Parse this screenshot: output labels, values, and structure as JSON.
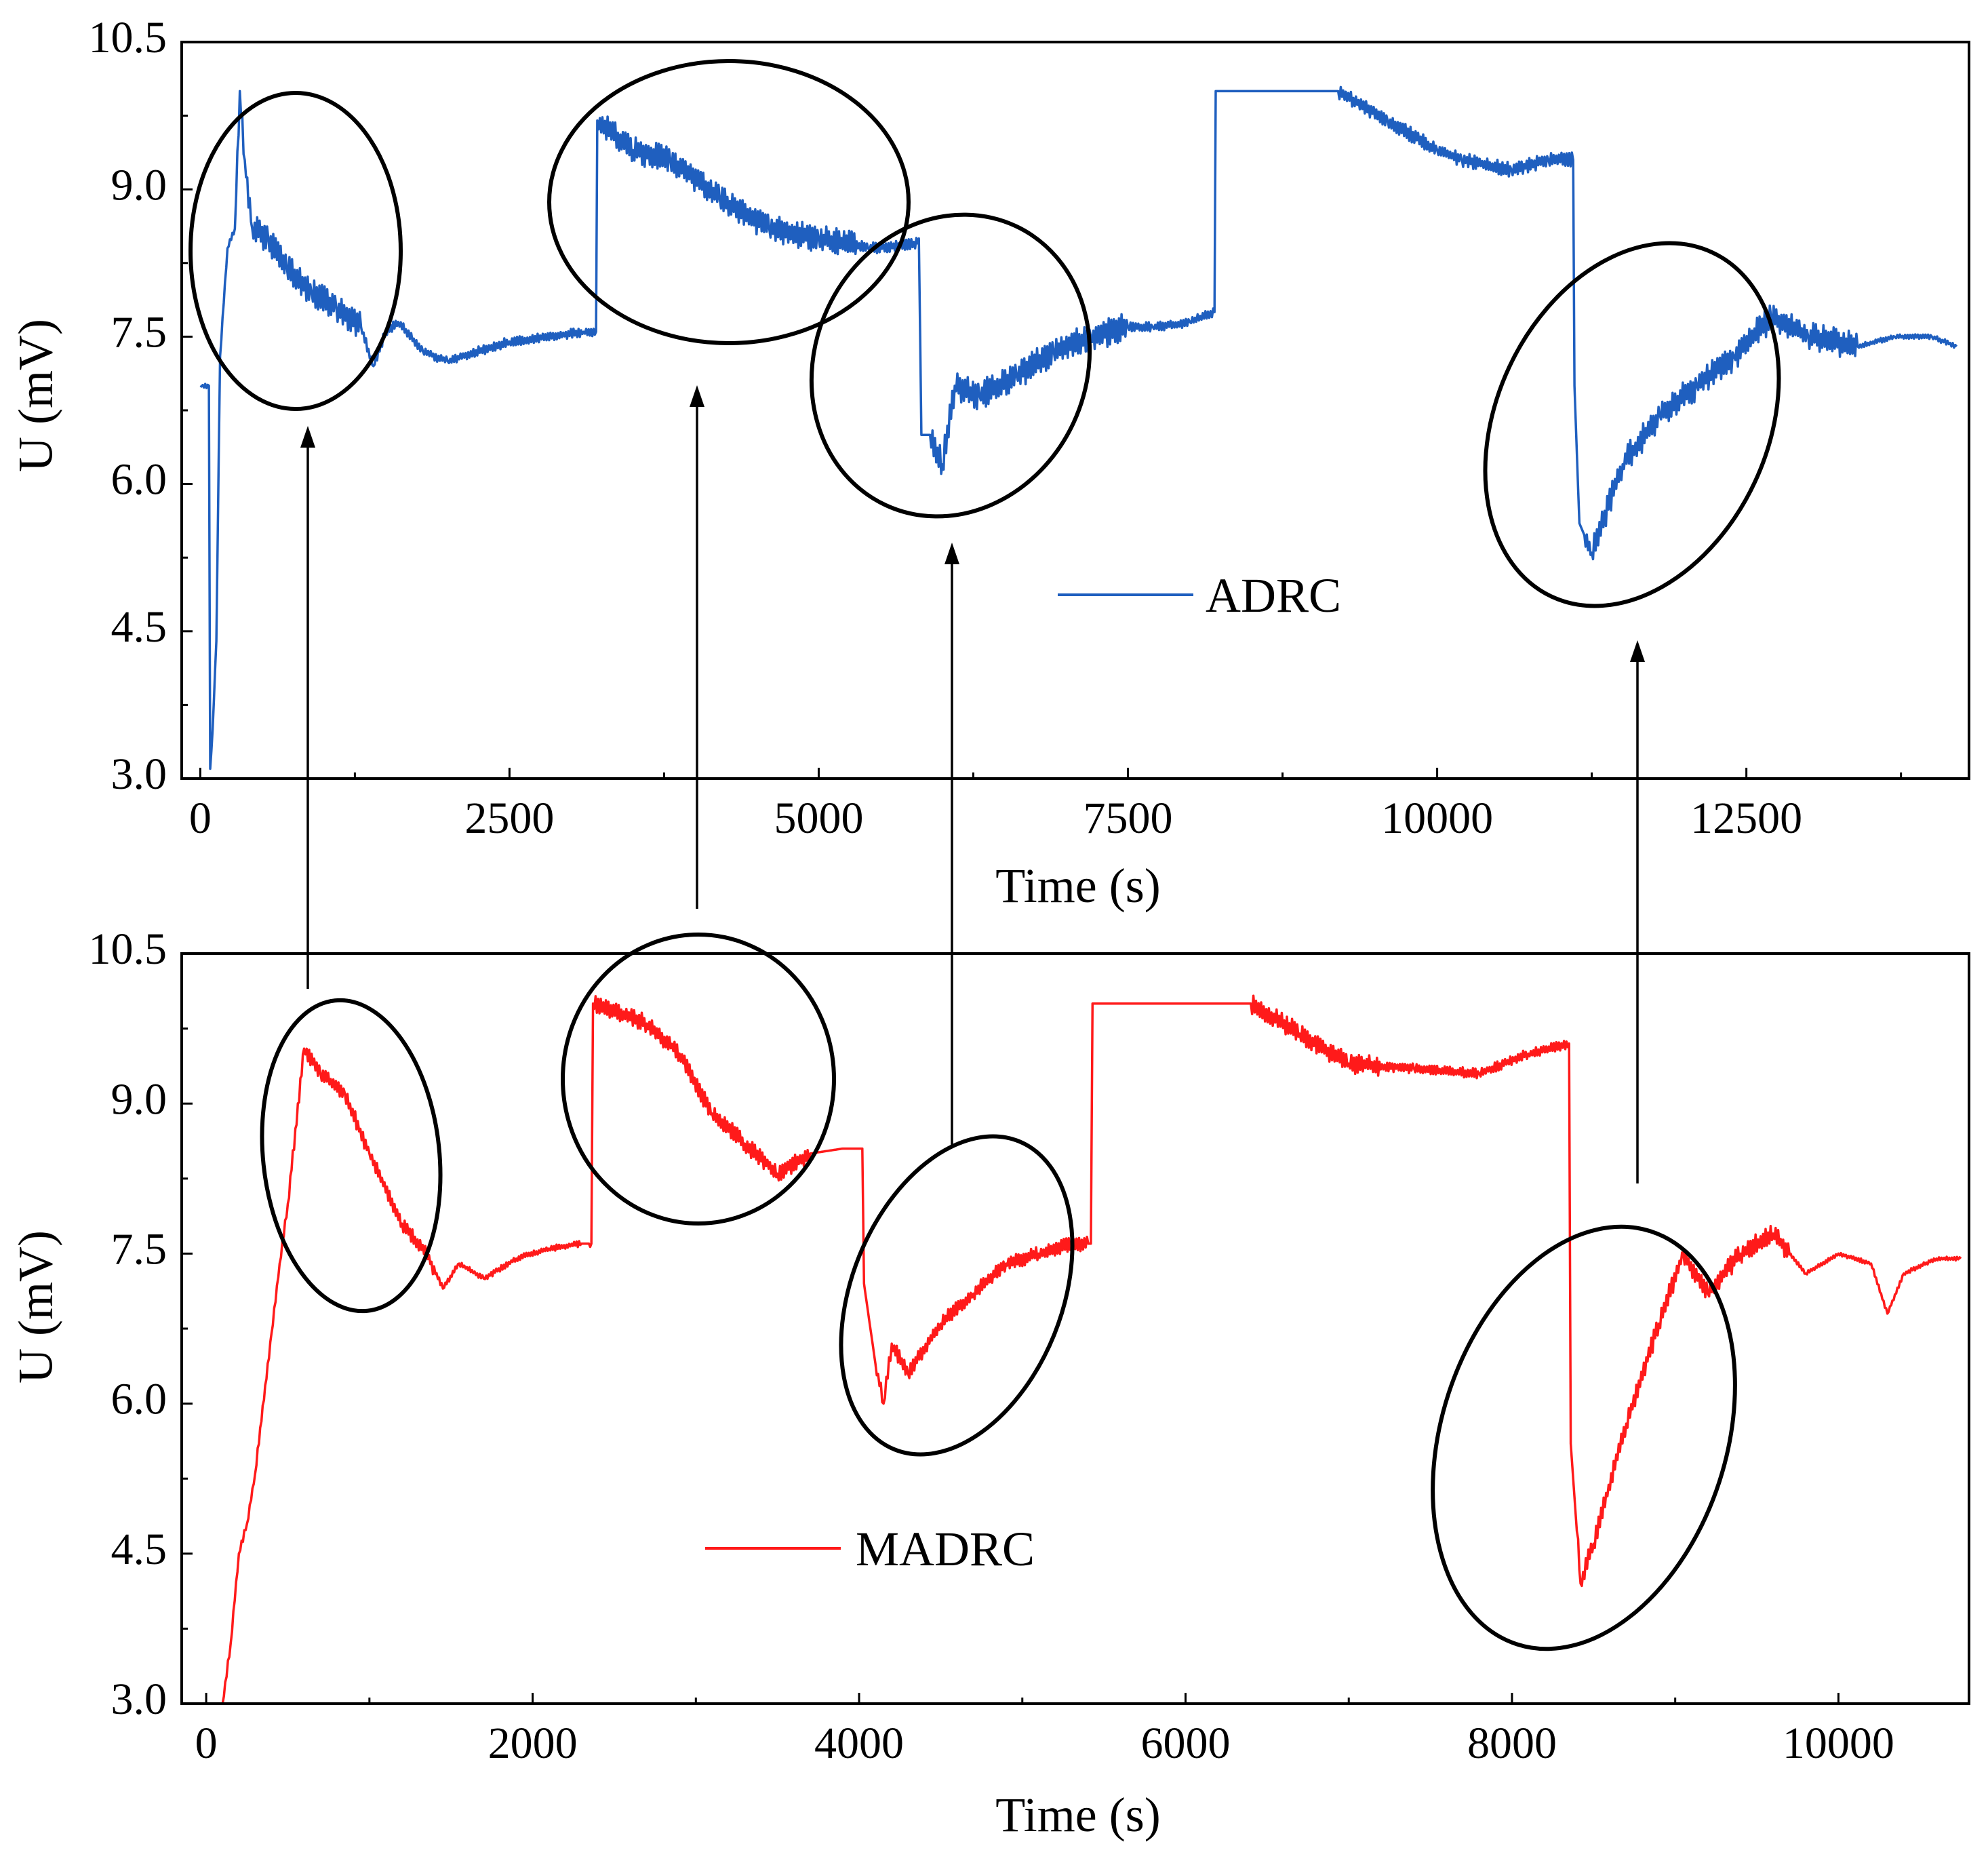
{
  "colors": {
    "adrc": "#1f5fbf",
    "madrc": "#ff1a1a",
    "axis": "#000000"
  },
  "chart_data": [
    {
      "type": "line",
      "id": "top",
      "xlabel": "Time (s)",
      "ylabel": "U (mV)",
      "xlim": [
        -150,
        14300
      ],
      "ylim": [
        3.0,
        10.5
      ],
      "xticks": [
        0,
        2500,
        5000,
        7500,
        10000,
        12500
      ],
      "xtick_labels": [
        "0",
        "2500",
        "5000",
        "7500",
        "10000",
        "12500"
      ],
      "yticks": [
        3.0,
        4.5,
        6.0,
        7.5,
        9.0,
        10.5
      ],
      "ytick_labels": [
        "3.0",
        "4.5",
        "6.0",
        "7.5",
        "9.0",
        "10.5"
      ],
      "legend": {
        "label": "ADRC",
        "position": "center-right"
      },
      "series": [
        {
          "name": "ADRC",
          "noise": [
            [
              0,
              300,
              0.05
            ],
            [
              300,
              1300,
              0.3
            ],
            [
              1300,
              3200,
              0.1
            ],
            [
              3200,
              5300,
              0.28
            ],
            [
              5300,
              5800,
              0.12
            ],
            [
              5900,
              7500,
              0.3
            ],
            [
              7500,
              8200,
              0.1
            ],
            [
              9200,
              11100,
              0.15
            ],
            [
              11200,
              13400,
              0.3
            ],
            [
              13400,
              14200,
              0.05
            ]
          ],
          "points": [
            [
              0,
              7.0
            ],
            [
              70,
              7.0
            ],
            [
              80,
              3.1
            ],
            [
              100,
              3.5
            ],
            [
              130,
              4.4
            ],
            [
              160,
              7.3
            ],
            [
              220,
              8.4
            ],
            [
              280,
              8.6
            ],
            [
              320,
              10.0
            ],
            [
              360,
              9.3
            ],
            [
              420,
              8.6
            ],
            [
              550,
              8.5
            ],
            [
              700,
              8.2
            ],
            [
              900,
              7.95
            ],
            [
              1100,
              7.8
            ],
            [
              1300,
              7.6
            ],
            [
              1400,
              7.2
            ],
            [
              1500,
              7.55
            ],
            [
              1600,
              7.65
            ],
            [
              1800,
              7.35
            ],
            [
              2000,
              7.25
            ],
            [
              2500,
              7.45
            ],
            [
              3100,
              7.55
            ],
            [
              3200,
              7.55
            ],
            [
              3210,
              9.7
            ],
            [
              3500,
              9.4
            ],
            [
              3800,
              9.3
            ],
            [
              4200,
              8.9
            ],
            [
              4600,
              8.6
            ],
            [
              5000,
              8.5
            ],
            [
              5400,
              8.4
            ],
            [
              5800,
              8.45
            ],
            [
              5810,
              8.5
            ],
            [
              5830,
              6.5
            ],
            [
              5900,
              6.5
            ],
            [
              6000,
              6.2
            ],
            [
              6100,
              7.0
            ],
            [
              6300,
              6.9
            ],
            [
              6600,
              7.1
            ],
            [
              6900,
              7.35
            ],
            [
              7200,
              7.5
            ],
            [
              7500,
              7.6
            ],
            [
              7700,
              7.6
            ],
            [
              8000,
              7.65
            ],
            [
              8200,
              7.75
            ],
            [
              8210,
              10.0
            ],
            [
              9200,
              10.0
            ],
            [
              9600,
              9.7
            ],
            [
              10000,
              9.4
            ],
            [
              10200,
              9.3
            ],
            [
              10600,
              9.2
            ],
            [
              10900,
              9.3
            ],
            [
              11100,
              9.3
            ],
            [
              11110,
              7.0
            ],
            [
              11150,
              5.6
            ],
            [
              11250,
              5.3
            ],
            [
              11500,
              6.2
            ],
            [
              11800,
              6.7
            ],
            [
              12100,
              7.0
            ],
            [
              12400,
              7.3
            ],
            [
              12700,
              7.7
            ],
            [
              13000,
              7.5
            ],
            [
              13400,
              7.4
            ],
            [
              13700,
              7.5
            ],
            [
              14000,
              7.5
            ],
            [
              14200,
              7.4
            ]
          ]
        }
      ]
    },
    {
      "type": "line",
      "id": "bottom",
      "xlabel": "Time (s)",
      "ylabel": "U (mV)",
      "xlim": [
        -150,
        10800
      ],
      "ylim": [
        3.0,
        10.5
      ],
      "xticks": [
        0,
        2000,
        4000,
        6000,
        8000,
        10000
      ],
      "xtick_labels": [
        "0",
        "2000",
        "4000",
        "6000",
        "8000",
        "10000"
      ],
      "yticks": [
        3.0,
        4.5,
        6.0,
        7.5,
        9.0,
        10.5
      ],
      "ytick_labels": [
        "3.0",
        "4.5",
        "6.0",
        "7.5",
        "9.0",
        "10.5"
      ],
      "legend": {
        "label": "MADRC",
        "position": "bottom-center"
      },
      "series": [
        {
          "name": "MADRC",
          "noise": [
            [
              0,
              500,
              0.08
            ],
            [
              500,
              1400,
              0.15
            ],
            [
              1400,
              2300,
              0.06
            ],
            [
              2350,
              3700,
              0.18
            ],
            [
              4100,
              5400,
              0.15
            ],
            [
              6400,
              7200,
              0.2
            ],
            [
              7200,
              8350,
              0.1
            ],
            [
              8400,
              9700,
              0.2
            ],
            [
              9700,
              10800,
              0.04
            ]
          ],
          "points": [
            [
              100,
              3.0
            ],
            [
              150,
              3.6
            ],
            [
              200,
              4.5
            ],
            [
              250,
              4.8
            ],
            [
              300,
              5.3
            ],
            [
              400,
              6.7
            ],
            [
              450,
              7.4
            ],
            [
              500,
              8.0
            ],
            [
              600,
              9.55
            ],
            [
              700,
              9.3
            ],
            [
              850,
              9.1
            ],
            [
              1000,
              8.5
            ],
            [
              1200,
              7.8
            ],
            [
              1350,
              7.5
            ],
            [
              1450,
              7.15
            ],
            [
              1550,
              7.4
            ],
            [
              1700,
              7.25
            ],
            [
              1900,
              7.45
            ],
            [
              2100,
              7.55
            ],
            [
              2300,
              7.6
            ],
            [
              2360,
              7.6
            ],
            [
              2370,
              10.0
            ],
            [
              2700,
              9.8
            ],
            [
              2900,
              9.5
            ],
            [
              3100,
              8.9
            ],
            [
              3300,
              8.6
            ],
            [
              3500,
              8.3
            ],
            [
              3700,
              8.5
            ],
            [
              3900,
              8.55
            ],
            [
              4020,
              8.55
            ],
            [
              4030,
              7.2
            ],
            [
              4100,
              6.4
            ],
            [
              4150,
              6.0
            ],
            [
              4200,
              6.6
            ],
            [
              4300,
              6.3
            ],
            [
              4500,
              6.8
            ],
            [
              4700,
              7.1
            ],
            [
              4900,
              7.4
            ],
            [
              5100,
              7.5
            ],
            [
              5300,
              7.6
            ],
            [
              5420,
              7.6
            ],
            [
              5430,
              10.0
            ],
            [
              6400,
              10.0
            ],
            [
              6700,
              9.7
            ],
            [
              7000,
              9.4
            ],
            [
              7400,
              9.35
            ],
            [
              7800,
              9.3
            ],
            [
              8100,
              9.5
            ],
            [
              8350,
              9.6
            ],
            [
              8360,
              5.6
            ],
            [
              8420,
              4.2
            ],
            [
              8500,
              4.6
            ],
            [
              8700,
              5.8
            ],
            [
              8900,
              6.8
            ],
            [
              9050,
              7.5
            ],
            [
              9200,
              7.1
            ],
            [
              9400,
              7.5
            ],
            [
              9600,
              7.7
            ],
            [
              9800,
              7.3
            ],
            [
              10000,
              7.5
            ],
            [
              10200,
              7.4
            ],
            [
              10300,
              6.9
            ],
            [
              10400,
              7.3
            ],
            [
              10600,
              7.45
            ],
            [
              10750,
              7.45
            ]
          ]
        }
      ]
    }
  ]
}
